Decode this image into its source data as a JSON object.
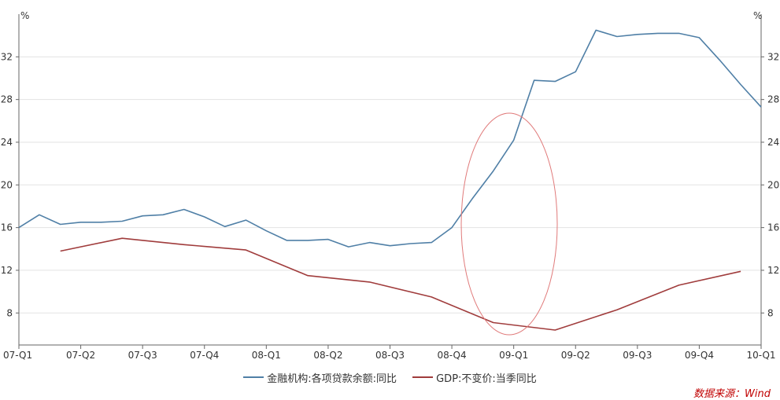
{
  "chart_data": {
    "type": "line",
    "units": {
      "left": "%",
      "right": "%"
    },
    "x_labels": [
      "07-Q1",
      "07-Q2",
      "07-Q3",
      "07-Q4",
      "08-Q1",
      "08-Q2",
      "08-Q3",
      "08-Q4",
      "09-Q1",
      "09-Q2",
      "09-Q3",
      "09-Q4",
      "10-Q1"
    ],
    "ylim": [
      5,
      36
    ],
    "y_ticks": [
      8,
      12,
      16,
      20,
      24,
      28,
      32
    ],
    "grid": true,
    "legend_position": "bottom",
    "series": [
      {
        "name": "金融机构:各项贷款余额:同比",
        "color": "#4f7fa6",
        "x": [
          0,
          0.33,
          0.67,
          1,
          1.33,
          1.67,
          2,
          2.33,
          2.67,
          3,
          3.33,
          3.67,
          4,
          4.33,
          4.67,
          5,
          5.33,
          5.67,
          6,
          6.33,
          6.67,
          7,
          7.33,
          7.67,
          8,
          8.33,
          8.67,
          9,
          9.33,
          9.67,
          10,
          10.33,
          10.67,
          11,
          11.33,
          11.67,
          12
        ],
        "y": [
          16.0,
          17.2,
          16.3,
          16.5,
          16.5,
          16.6,
          17.1,
          17.2,
          17.7,
          17.0,
          16.1,
          16.7,
          15.7,
          14.8,
          14.8,
          14.9,
          14.2,
          14.6,
          14.3,
          14.5,
          14.6,
          16.0,
          18.7,
          21.3,
          24.2,
          29.8,
          29.7,
          30.6,
          34.5,
          33.9,
          34.1,
          34.2,
          34.2,
          33.8,
          31.7,
          29.4,
          27.3
        ]
      },
      {
        "name": "GDP:不变价:当季同比",
        "color": "#a03c3c",
        "x": [
          0.67,
          1.67,
          2.67,
          3.67,
          4.67,
          5.67,
          6.67,
          7.67,
          8.67,
          9.67,
          10.67,
          11.67
        ],
        "y": [
          13.8,
          15.0,
          14.4,
          13.9,
          11.5,
          10.9,
          9.5,
          7.1,
          6.4,
          8.3,
          10.6,
          11.9
        ]
      }
    ]
  },
  "source": "数据来源：Wind"
}
